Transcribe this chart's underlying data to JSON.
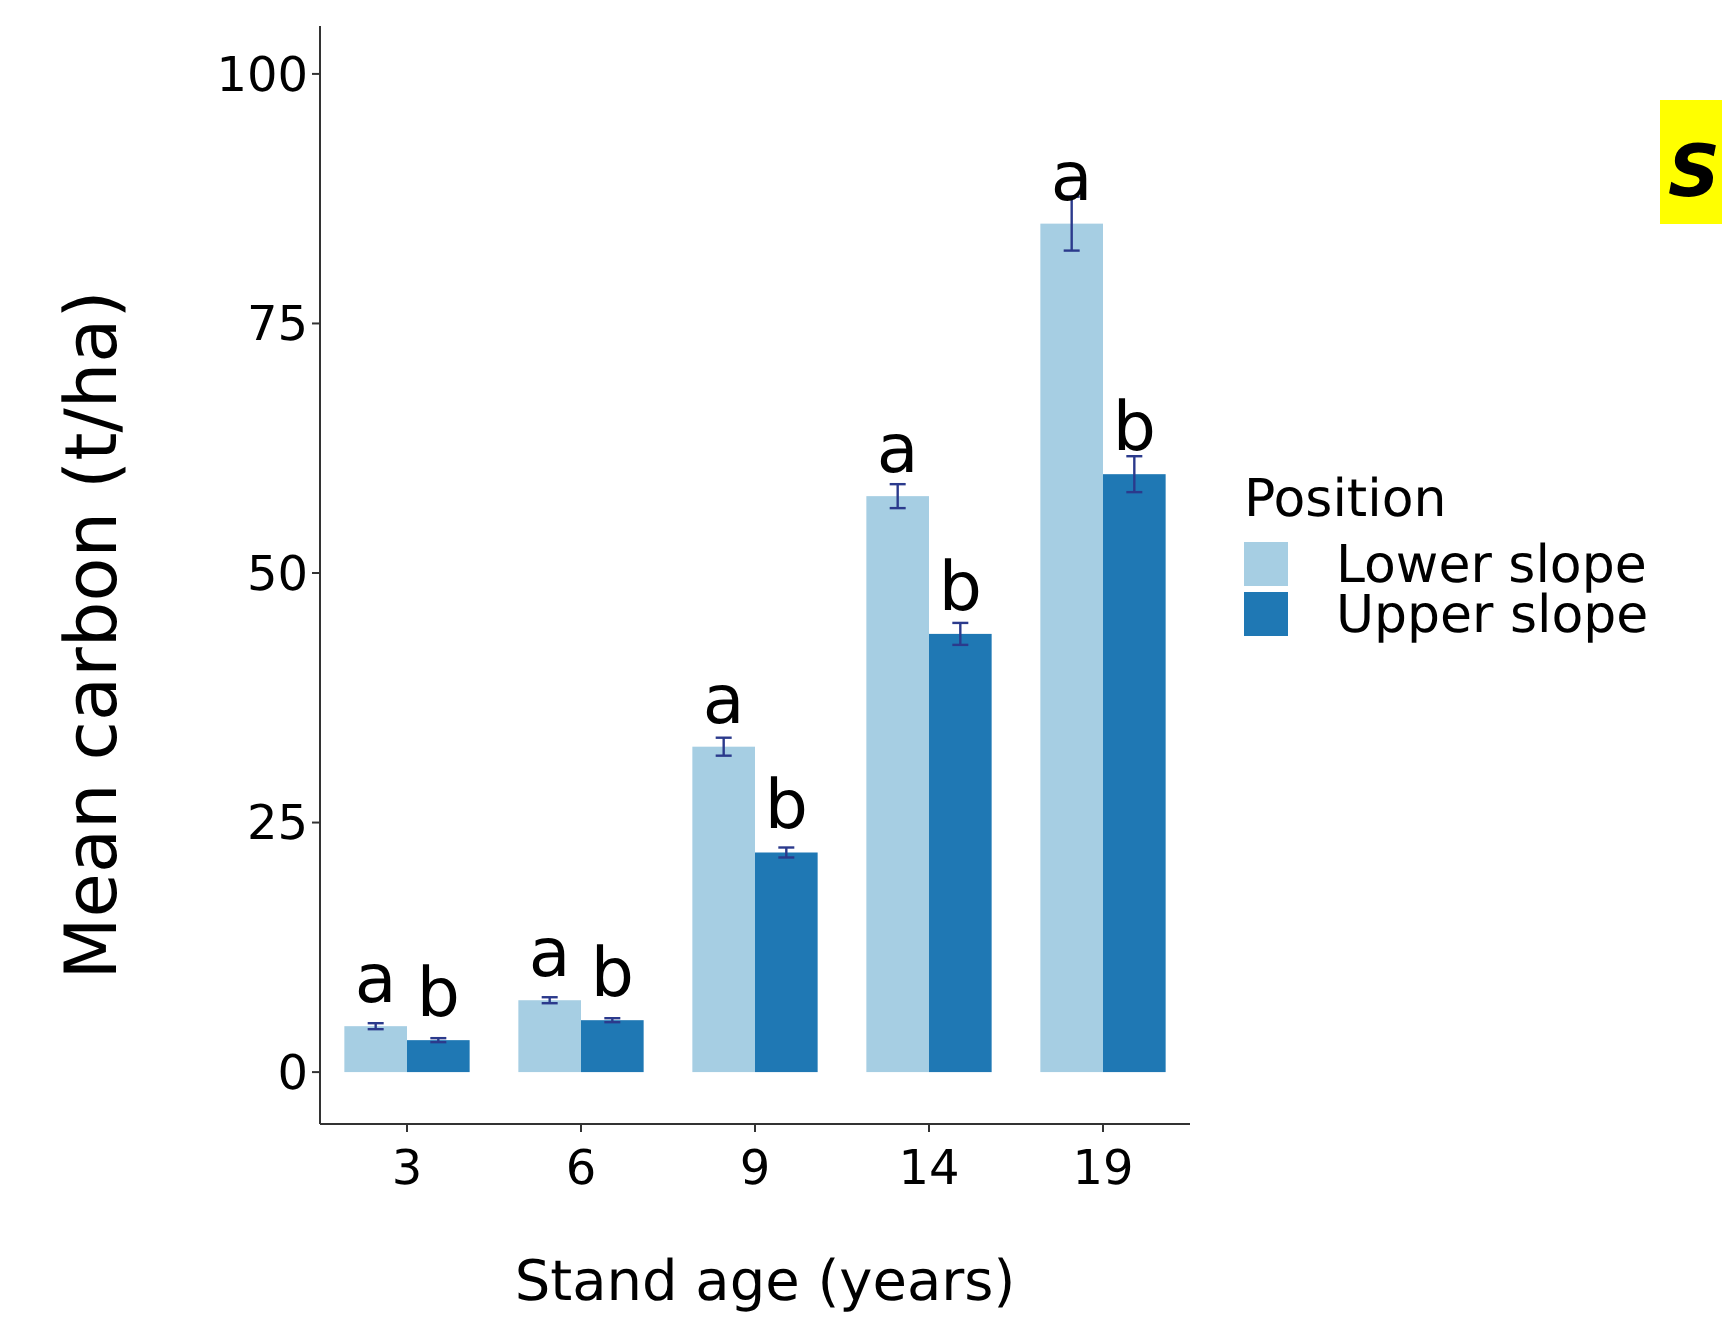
{
  "chart_data": {
    "type": "bar",
    "xlabel": "Stand age (years)",
    "ylabel": "Mean carbon (t/ha)",
    "legend_title": "Position",
    "categories": [
      "3",
      "6",
      "9",
      "14",
      "19"
    ],
    "series": [
      {
        "name": "Lower slope",
        "color": "#a6cee3",
        "values": [
          4.6,
          7.2,
          32.6,
          57.7,
          85.0
        ],
        "errors": [
          0.3,
          0.3,
          0.9,
          1.2,
          2.7
        ]
      },
      {
        "name": "Upper slope",
        "color": "#1f78b4",
        "values": [
          3.2,
          5.2,
          22.0,
          43.9,
          59.9
        ],
        "errors": [
          0.2,
          0.2,
          0.5,
          1.1,
          1.8
        ]
      }
    ],
    "ylim": [
      -5.2,
      104.8
    ],
    "yticks": [
      0,
      25,
      50,
      75,
      100
    ],
    "grid": false,
    "legend": "right",
    "annotations": [
      {
        "text": "a",
        "x": "3",
        "y": 4.6
      },
      {
        "text": "b",
        "x": "3",
        "y": 3.2
      },
      {
        "text": "a",
        "x": "6",
        "y": 7.2
      },
      {
        "text": "b",
        "x": "6",
        "y": 5.2
      },
      {
        "text": "a",
        "x": "9",
        "y": 32.6
      },
      {
        "text": "b",
        "x": "9",
        "y": 22.0
      },
      {
        "text": "a",
        "x": "14",
        "y": 57.7
      },
      {
        "text": "b",
        "x": "14",
        "y": 43.9
      },
      {
        "text": "a",
        "x": "19",
        "y": 85.0
      },
      {
        "text": "b",
        "x": "19",
        "y": 59.9
      },
      "S"
    ]
  }
}
